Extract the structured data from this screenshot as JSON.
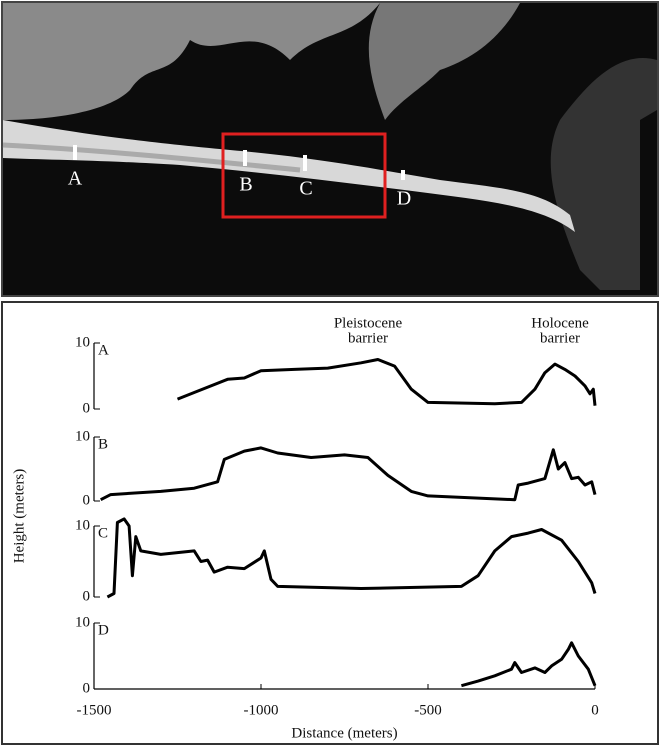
{
  "image_labels": [
    "A",
    "B",
    "C",
    "D"
  ],
  "chart_data": [
    {
      "type": "line",
      "panel_label": "A",
      "annotations": [
        [
          "Pleistocene",
          "barrier"
        ],
        [
          "Holocene",
          "barrier"
        ]
      ],
      "x": [
        -1250,
        -1200,
        -1100,
        -1050,
        -1000,
        -900,
        -800,
        -700,
        -650,
        -600,
        -550,
        -500,
        -300,
        -220,
        -180,
        -150,
        -120,
        -90,
        -60,
        -30,
        -15,
        -5,
        0
      ],
      "values": [
        1.5,
        2.5,
        4.5,
        4.7,
        5.8,
        6,
        6.2,
        7,
        7.5,
        6.5,
        3,
        1,
        0.8,
        1,
        3,
        5.5,
        6.8,
        6,
        5,
        3.5,
        2.3,
        3,
        0.5
      ],
      "color": "#000000",
      "xlim": [
        -1500,
        0
      ],
      "ylim": [
        0,
        10
      ],
      "yticks": [
        0,
        10
      ]
    },
    {
      "type": "line",
      "panel_label": "B",
      "x": [
        -1480,
        -1450,
        -1300,
        -1200,
        -1130,
        -1110,
        -1050,
        -1000,
        -950,
        -850,
        -750,
        -680,
        -620,
        -550,
        -500,
        -240,
        -230,
        -200,
        -150,
        -125,
        -110,
        -90,
        -70,
        -50,
        -30,
        -10,
        0
      ],
      "values": [
        0.2,
        1,
        1.5,
        2,
        3,
        6.5,
        7.8,
        8.3,
        7.5,
        6.8,
        7.2,
        6.8,
        4,
        1.5,
        0.8,
        0.2,
        2.5,
        2.8,
        3.5,
        8,
        5,
        6,
        3.5,
        3.7,
        2.5,
        3,
        1
      ],
      "color": "#000000",
      "xlim": [
        -1500,
        0
      ],
      "ylim": [
        0,
        10
      ],
      "yticks": [
        0,
        10
      ]
    },
    {
      "type": "line",
      "panel_label": "C",
      "ylabel": "Height (meters)",
      "x": [
        -1460,
        -1440,
        -1430,
        -1410,
        -1395,
        -1385,
        -1375,
        -1360,
        -1300,
        -1200,
        -1180,
        -1160,
        -1140,
        -1100,
        -1050,
        -1000,
        -990,
        -970,
        -950,
        -700,
        -400,
        -350,
        -300,
        -250,
        -200,
        -160,
        -100,
        -50,
        -10,
        0
      ],
      "values": [
        0,
        0.5,
        10.5,
        11,
        10,
        3,
        8.5,
        6.5,
        6,
        6.5,
        5,
        5.2,
        3.5,
        4.2,
        4,
        5.5,
        6.5,
        2.5,
        1.5,
        1.2,
        1.5,
        3,
        6.5,
        8.5,
        9,
        9.5,
        8,
        5,
        2,
        0.5
      ],
      "color": "#000000",
      "xlim": [
        -1500,
        0
      ],
      "ylim": [
        0,
        10
      ],
      "yticks": [
        0,
        10
      ]
    },
    {
      "type": "line",
      "panel_label": "D",
      "xlabel": "Distance (meters)",
      "x": [
        -400,
        -350,
        -300,
        -250,
        -240,
        -220,
        -180,
        -150,
        -130,
        -100,
        -80,
        -70,
        -50,
        -20,
        0
      ],
      "values": [
        0.5,
        1.2,
        2,
        3,
        4,
        2.5,
        3.2,
        2.5,
        3.5,
        4.5,
        6,
        7,
        5,
        3,
        0.5
      ],
      "color": "#000000",
      "xlim": [
        -1500,
        0
      ],
      "ylim": [
        0,
        10
      ],
      "yticks": [
        0,
        10
      ],
      "xticks": [
        -1500,
        -1000,
        -500,
        0
      ]
    }
  ]
}
